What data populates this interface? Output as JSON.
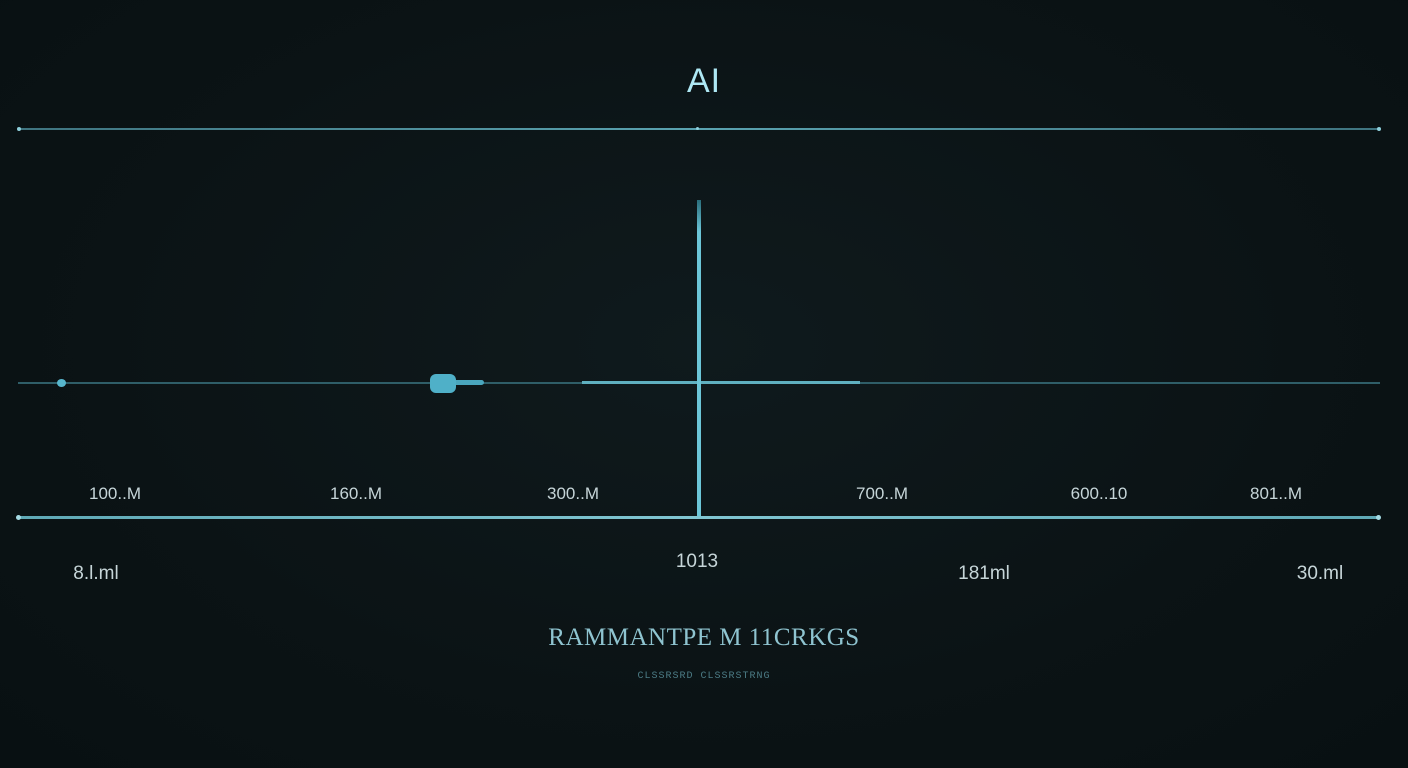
{
  "title": "AI",
  "tick_labels": [
    "100..M",
    "160..M",
    "300..M",
    "700..M",
    "600..10",
    "801..M"
  ],
  "sub_labels": [
    "8.l.ml",
    "181ml",
    "30.ml"
  ],
  "center_label": "1013",
  "caption": "RAMMANTPE M 11CRKGS",
  "subcaption": "CLSSRSRD CLSSRSTRNG",
  "colors": {
    "background": "#0b1315",
    "accent": "#5fb0c0",
    "text": "#c6d5d8"
  }
}
